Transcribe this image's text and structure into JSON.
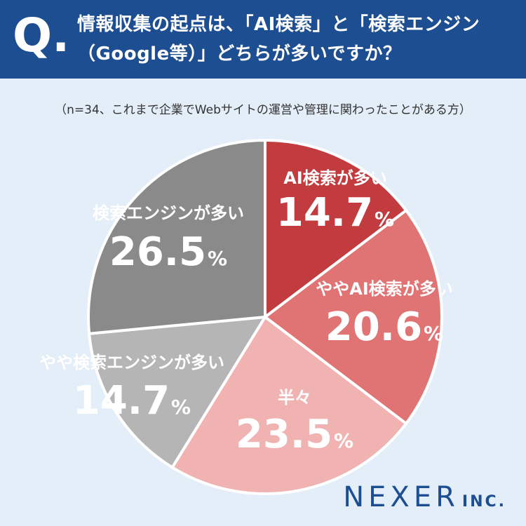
{
  "header": {
    "q_mark": "Q.",
    "title_line1": "情報収集の起点は、「AI検索」と「検索エンジン",
    "title_line2": "（Google等）」どちらが多いですか？"
  },
  "note": "（n=34、これまで企業でWebサイトの運営や管理に関わったことがある方）",
  "logo": {
    "name": "NEXER",
    "suffix": "INC."
  },
  "chart_data": {
    "type": "pie",
    "start_angle_deg": 0,
    "direction": "clockwise",
    "slices": [
      {
        "label": "AI検索が多い",
        "value": 14.7,
        "display": "14.7",
        "color": "#c23b3f",
        "text_color": "#ffffff"
      },
      {
        "label": "ややAI検索が多い",
        "value": 20.6,
        "display": "20.6",
        "color": "#e07474",
        "text_color": "#ffffff"
      },
      {
        "label": "半々",
        "value": 23.5,
        "display": "23.5",
        "color": "#f1b2b2",
        "text_color": "#ffffff"
      },
      {
        "label": "やや検索エンジンが多い",
        "value": 14.7,
        "display": "14.7",
        "color": "#b5b5b5",
        "text_color": "#ffffff"
      },
      {
        "label": "検索エンジンが多い",
        "value": 26.5,
        "display": "26.5",
        "color": "#8a8a8a",
        "text_color": "#ffffff"
      }
    ],
    "unit": "%"
  }
}
